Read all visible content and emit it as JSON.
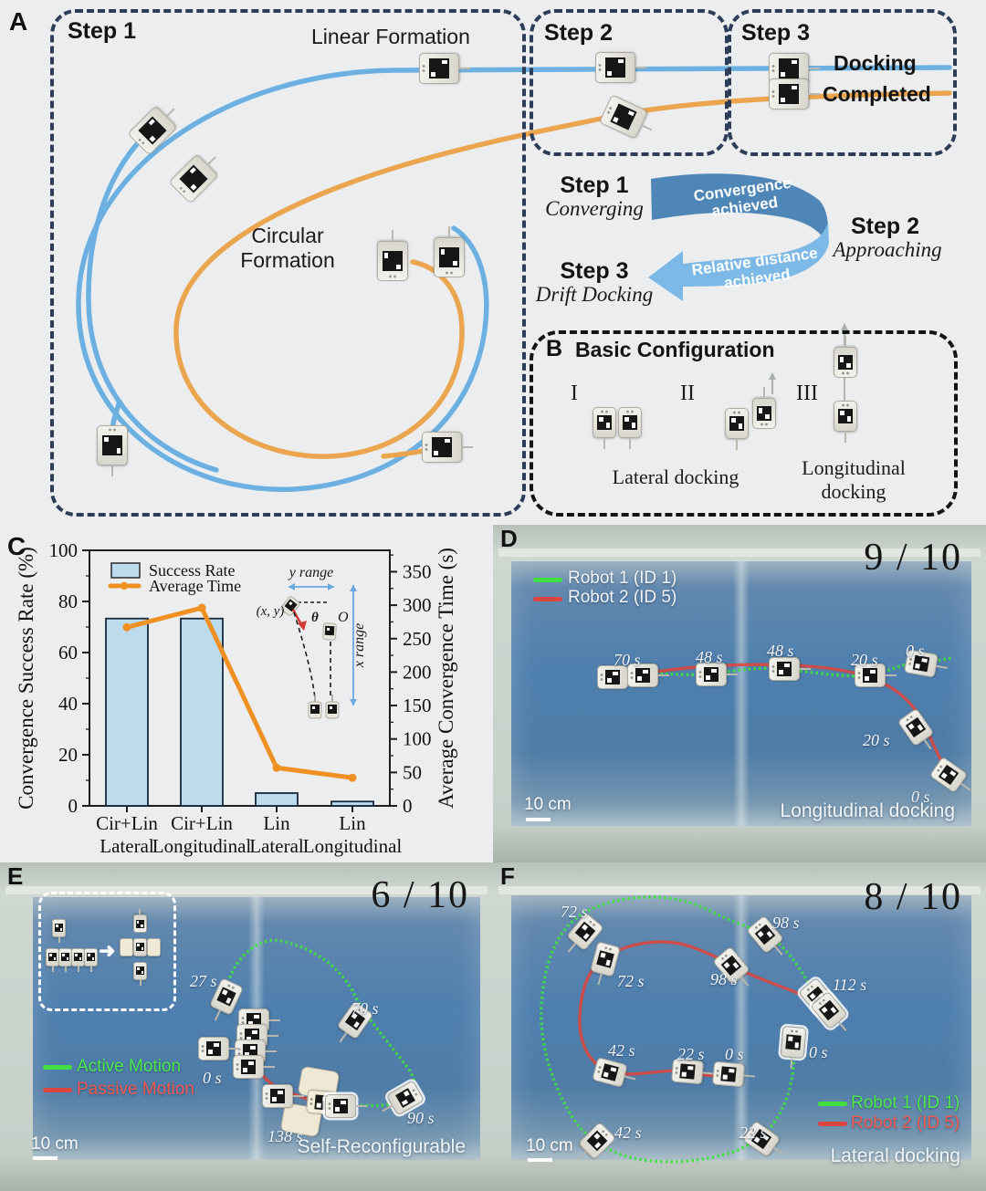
{
  "colors": {
    "accent_blue": "#6cb0e2",
    "accent_orange": "#eaa54e",
    "arrow_dark_blue": "#4e86b8",
    "arrow_light_blue": "#7db9e6",
    "dash_navy": "#2e3d57",
    "bar_fill": "#bcdcee",
    "line_orange": "#ee9022",
    "traj_green": "#41df41",
    "traj_red": "#df443a",
    "water_blue": "#4e7fae"
  },
  "panelA": {
    "label": "A",
    "step1": "Step 1",
    "step2": "Step 2",
    "step3": "Step 3",
    "linear_formation": "Linear Formation",
    "circular_formation": [
      "Circular",
      "Formation"
    ],
    "docking_completed": [
      "Docking",
      "Completed"
    ],
    "flow": {
      "step1_title": "Step 1",
      "step1_sub": "Converging",
      "step2_title": "Step 2",
      "step2_sub": "Approaching",
      "step3_title": "Step 3",
      "step3_sub": "Drift Docking",
      "arrow1": [
        "Convergence",
        "achieved"
      ],
      "arrow2": [
        "Relative distance",
        "achieved"
      ]
    }
  },
  "panelB": {
    "label": "B",
    "title": "Basic Configuration",
    "numerals": [
      "I",
      "II",
      "III"
    ],
    "lateral_caption": "Lateral docking",
    "longitudinal_caption": [
      "Longitudinal",
      "docking"
    ]
  },
  "panelC": {
    "label": "C"
  },
  "chart_data": {
    "type": "bar+line",
    "categories": [
      [
        "Cir+Lin",
        "Lateral"
      ],
      [
        "Cir+Lin",
        "Longitudinal"
      ],
      [
        "Lin",
        "Lateral"
      ],
      [
        "Lin",
        "Longitudinal"
      ]
    ],
    "series": [
      {
        "name": "Success Rate",
        "type": "bar",
        "axis": "left",
        "values": [
          73.3,
          73.3,
          5,
          1.7
        ],
        "color": "#bcdcee"
      },
      {
        "name": "Average Time",
        "type": "line",
        "axis": "right",
        "values": [
          267,
          296,
          57,
          42
        ],
        "color": "#ee9022"
      }
    ],
    "ylabel_left": "Convergence Success Rate (%)",
    "ylabel_right": "Average Convergence Time (s)",
    "ylim_left": [
      0,
      100
    ],
    "ylim_right": [
      0,
      382
    ],
    "yticks_left": [
      0,
      20,
      40,
      60,
      80,
      100
    ],
    "yticks_right": [
      0,
      50,
      100,
      150,
      200,
      250,
      300,
      350
    ],
    "legend_position": "top-left",
    "grid": false,
    "inset_labels": {
      "y_range": "y range",
      "xy": "(x, y)",
      "theta": "θ",
      "origin": "O",
      "x_range": "x range"
    }
  },
  "panelD": {
    "label": "D",
    "counter": "9 / 10",
    "legend": [
      {
        "label": "Robot 1 (ID 1)",
        "color": "#41df41"
      },
      {
        "label": "Robot 2 (ID 5)",
        "color": "#df443a"
      }
    ],
    "time_labels": [
      "70 s",
      "48 s",
      "48 s",
      "20 s",
      "0 s",
      "20 s",
      "0 s"
    ],
    "scale_label": "10 cm",
    "caption": "Longitudinal docking"
  },
  "panelE": {
    "label": "E",
    "counter": "6 / 10",
    "legend": [
      {
        "label": "Active Motion",
        "color": "#41df41"
      },
      {
        "label": "Passive Motion",
        "color": "#df443a"
      }
    ],
    "time_labels": [
      "27 s",
      "70 s",
      "0 s",
      "138 s",
      "90 s"
    ],
    "scale_label": "10 cm",
    "caption": "Self-Reconfigurable"
  },
  "panelF": {
    "label": "F",
    "counter": "8 / 10",
    "legend": [
      {
        "label": "Robot 1 (ID 1)",
        "color": "#41df41"
      },
      {
        "label": "Robot 2 (ID 5)",
        "color": "#df443a"
      }
    ],
    "time_labels": [
      "72 s",
      "98 s",
      "72 s",
      "98 s",
      "112 s",
      "42 s",
      "22 s",
      "0 s",
      "0 s",
      "42 s",
      "22 s"
    ],
    "scale_label": "10 cm",
    "caption": "Lateral docking"
  }
}
